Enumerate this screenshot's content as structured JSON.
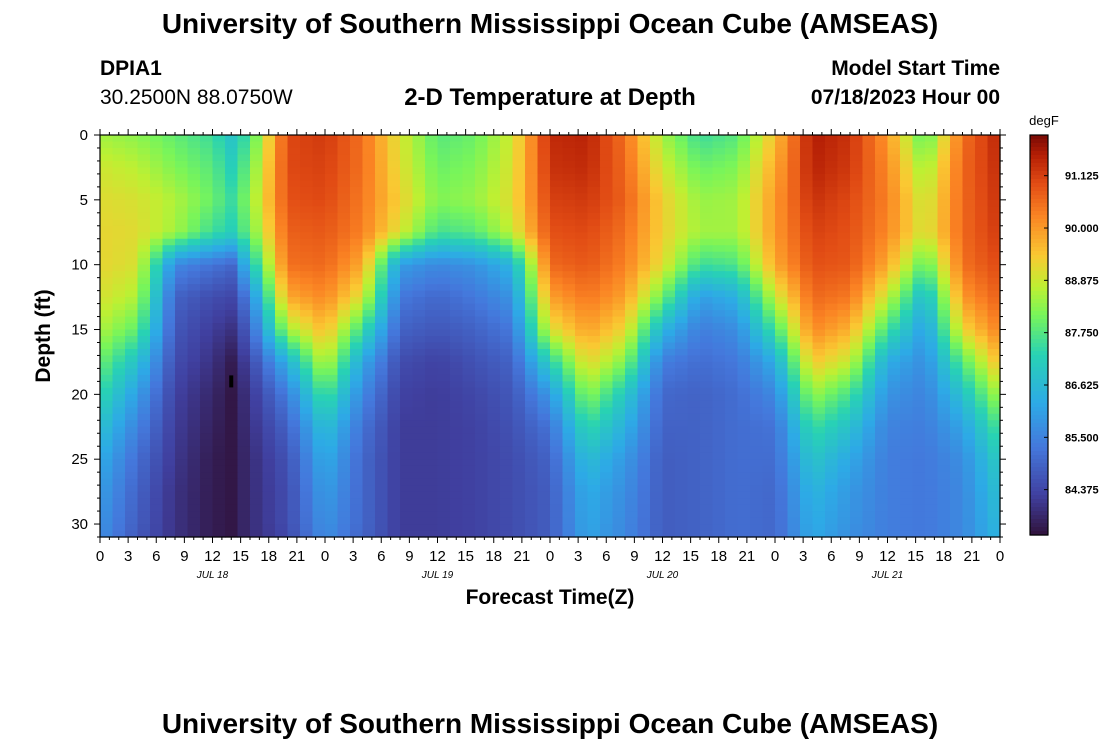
{
  "header": {
    "title": "University of Southern Mississippi Ocean Cube (AMSEAS)",
    "station_id": "DPIA1",
    "station_coords": "30.2500N  88.0750W",
    "plot_title": "2-D Temperature at Depth",
    "model_start_label": "Model Start Time",
    "model_start_value": "07/18/2023 Hour 00"
  },
  "footer": {
    "title": "University of Southern Mississippi Ocean Cube (AMSEAS)"
  },
  "chart_data": {
    "type": "heatmap",
    "title": "2-D Temperature at Depth",
    "xlabel": "Forecast Time(Z)",
    "ylabel": "Depth (ft)",
    "x_hours_range": [
      0,
      96
    ],
    "x_tick_labels": [
      "0",
      "3",
      "6",
      "9",
      "12",
      "15",
      "18",
      "21",
      "0",
      "3",
      "6",
      "9",
      "12",
      "15",
      "18",
      "21",
      "0",
      "3",
      "6",
      "9",
      "12",
      "15",
      "18",
      "21",
      "0",
      "3",
      "6",
      "9",
      "12",
      "15",
      "18",
      "21",
      "0"
    ],
    "day_labels": [
      {
        "label": "JUL 18",
        "hour": 12
      },
      {
        "label": "JUL 19",
        "hour": 36
      },
      {
        "label": "JUL 20",
        "hour": 60
      },
      {
        "label": "JUL 21",
        "hour": 84
      }
    ],
    "ylim": [
      0,
      31
    ],
    "y_ticks": [
      0,
      5,
      10,
      15,
      20,
      25,
      30
    ],
    "colorbar": {
      "units": "degF",
      "range": [
        83.4,
        92.0
      ],
      "ticks": [
        "91.125",
        "90.000",
        "88.875",
        "87.750",
        "86.625",
        "85.500",
        "84.375"
      ],
      "tick_values": [
        91.125,
        90.0,
        88.875,
        87.75,
        86.625,
        85.5,
        84.375
      ]
    },
    "depth_levels_ft": [
      0,
      2.5,
      5,
      7.5,
      10,
      12.5,
      15,
      17.5,
      20,
      22.5,
      25,
      27.5,
      30,
      31
    ],
    "hour_levels": [
      0,
      4,
      8,
      12,
      14,
      16,
      20,
      24,
      28,
      32,
      36,
      40,
      44,
      48,
      52,
      56,
      60,
      64,
      68,
      72,
      76,
      80,
      84,
      88,
      92,
      96
    ],
    "values_degF": [
      [
        88.5,
        88.3,
        87.9,
        87.5,
        86.9,
        87.6,
        91.0,
        91.2,
        90.5,
        89.0,
        87.8,
        88.0,
        88.9,
        91.4,
        91.5,
        90.5,
        88.5,
        87.5,
        87.8,
        89.5,
        91.6,
        91.3,
        90.0,
        87.8,
        90.5,
        91.5
      ],
      [
        88.9,
        88.7,
        88.2,
        87.8,
        87.2,
        88.0,
        91.0,
        91.1,
        90.5,
        89.1,
        88.0,
        88.2,
        89.0,
        91.3,
        91.4,
        90.6,
        88.9,
        88.0,
        88.2,
        89.8,
        91.5,
        91.2,
        90.2,
        88.4,
        90.6,
        91.4
      ],
      [
        89.1,
        89.0,
        88.6,
        88.0,
        87.5,
        88.3,
        90.9,
        91.0,
        90.4,
        89.3,
        88.2,
        88.4,
        89.1,
        91.1,
        91.2,
        90.7,
        89.3,
        88.4,
        88.5,
        90.0,
        91.3,
        91.0,
        90.3,
        88.8,
        90.6,
        91.3
      ],
      [
        89.2,
        89.1,
        88.5,
        87.5,
        87.2,
        88.0,
        90.7,
        90.8,
        90.3,
        89.0,
        87.6,
        87.8,
        88.8,
        90.9,
        91.0,
        90.5,
        89.3,
        88.5,
        88.5,
        90.0,
        91.1,
        90.9,
        90.2,
        88.9,
        90.6,
        91.2
      ],
      [
        89.2,
        89.0,
        85.6,
        85.2,
        85.0,
        86.8,
        90.5,
        90.6,
        89.8,
        86.0,
        85.6,
        85.8,
        86.5,
        90.6,
        90.8,
        90.3,
        89.1,
        87.5,
        87.7,
        89.8,
        90.9,
        90.8,
        89.8,
        87.8,
        90.5,
        91.0
      ],
      [
        89.0,
        88.6,
        84.9,
        84.5,
        84.4,
        85.5,
        89.8,
        90.2,
        89.0,
        85.3,
        85.0,
        85.3,
        85.8,
        89.9,
        90.4,
        89.9,
        88.0,
        86.0,
        86.4,
        88.8,
        90.6,
        90.4,
        88.8,
        86.6,
        90.0,
        90.7
      ],
      [
        88.6,
        87.9,
        84.7,
        84.2,
        84.0,
        84.9,
        88.5,
        89.6,
        87.5,
        84.9,
        84.7,
        84.9,
        85.3,
        89.0,
        89.9,
        89.2,
        86.5,
        85.4,
        85.7,
        87.6,
        90.2,
        89.7,
        87.6,
        86.0,
        89.2,
        90.3
      ],
      [
        88.0,
        86.8,
        84.5,
        84.0,
        83.6,
        84.4,
        86.4,
        88.8,
        86.2,
        84.5,
        84.3,
        84.6,
        84.9,
        87.2,
        89.2,
        88.2,
        85.4,
        85.1,
        85.3,
        86.3,
        89.4,
        88.8,
        86.3,
        85.7,
        87.8,
        89.6
      ],
      [
        87.4,
        86.0,
        84.3,
        83.8,
        83.5,
        84.1,
        85.4,
        87.7,
        85.6,
        84.3,
        84.2,
        84.4,
        84.7,
        85.9,
        88.3,
        87.0,
        85.0,
        84.9,
        85.1,
        85.6,
        88.4,
        87.6,
        85.8,
        85.5,
        86.8,
        88.6
      ],
      [
        86.8,
        85.5,
        84.2,
        83.7,
        83.5,
        84.0,
        84.9,
        86.8,
        85.2,
        84.2,
        84.2,
        84.3,
        84.6,
        85.2,
        87.4,
        86.4,
        84.9,
        84.9,
        85.1,
        85.2,
        87.5,
        86.8,
        85.5,
        85.4,
        86.1,
        87.7
      ],
      [
        86.3,
        85.1,
        84.1,
        83.6,
        83.5,
        83.9,
        84.6,
        86.3,
        85.0,
        84.2,
        84.2,
        84.3,
        84.5,
        84.9,
        86.7,
        85.9,
        84.8,
        84.9,
        85.1,
        85.1,
        86.9,
        86.2,
        85.4,
        85.3,
        85.7,
        87.1
      ],
      [
        86.0,
        84.9,
        84.0,
        83.6,
        83.5,
        83.9,
        84.5,
        86.0,
        85.0,
        84.2,
        84.2,
        84.3,
        84.5,
        84.8,
        86.3,
        85.7,
        84.8,
        84.9,
        85.1,
        85.0,
        86.5,
        85.9,
        85.4,
        85.3,
        85.6,
        86.8
      ],
      [
        85.8,
        84.8,
        84.0,
        83.6,
        83.5,
        83.9,
        84.5,
        85.8,
        85.0,
        84.2,
        84.2,
        84.3,
        84.5,
        84.8,
        86.2,
        85.6,
        84.8,
        84.9,
        85.1,
        85.0,
        86.3,
        85.8,
        85.4,
        85.3,
        85.6,
        86.6
      ],
      [
        85.7,
        84.7,
        84.0,
        83.6,
        83.5,
        83.9,
        84.4,
        85.7,
        84.9,
        84.2,
        84.2,
        84.3,
        84.5,
        84.8,
        86.1,
        85.6,
        84.8,
        84.9,
        85.1,
        85.0,
        86.2,
        85.7,
        85.4,
        85.3,
        85.6,
        86.5
      ]
    ],
    "marker": {
      "hour": 14,
      "depth_ft": 19
    }
  }
}
